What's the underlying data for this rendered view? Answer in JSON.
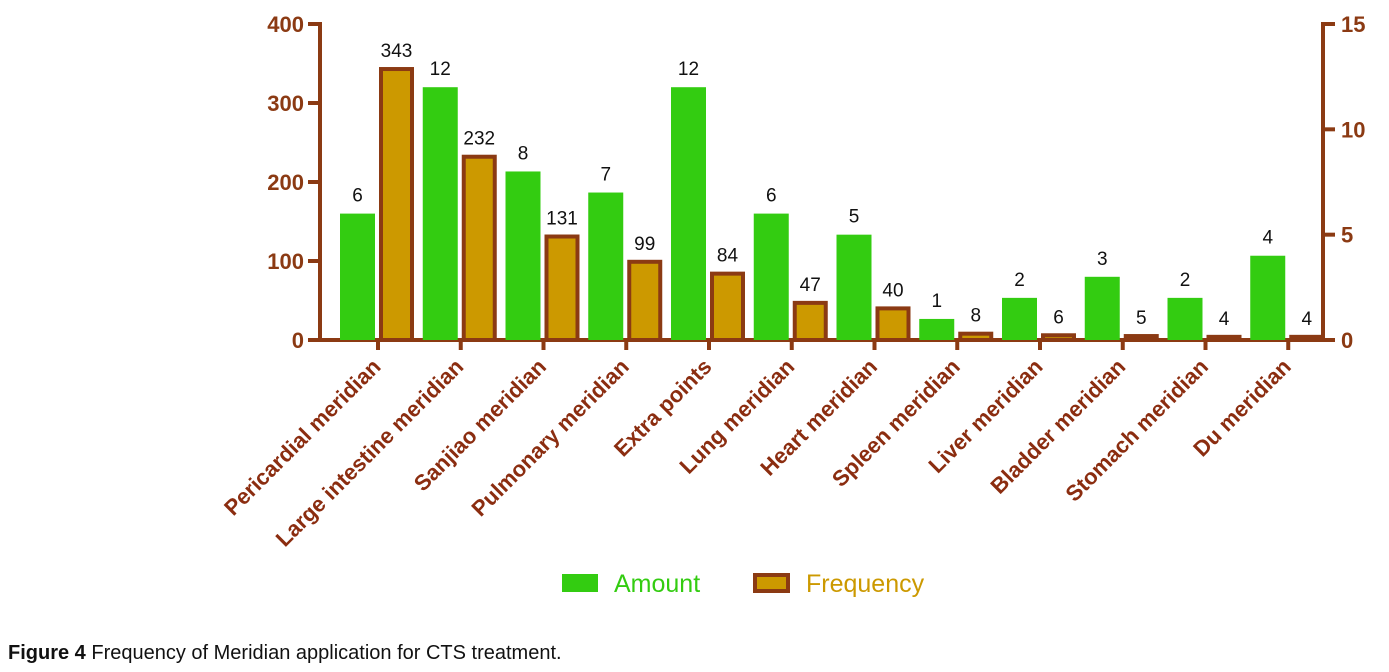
{
  "chart_data": {
    "type": "bar",
    "categories": [
      "Pericardial meridian",
      "Large intestine meridian",
      "Sanjiao meridian",
      "Pulmonary meridian",
      "Extra points",
      "Lung meridian",
      "Heart meridian",
      "Spleen meridian",
      "Liver meridian",
      "Bladder meridian",
      "Stomach meridian",
      "Du meridian"
    ],
    "series": [
      {
        "name": "Amount",
        "axis": "right",
        "color": "#33cc11",
        "values": [
          6,
          12,
          8,
          7,
          12,
          6,
          5,
          1,
          2,
          3,
          2,
          4
        ]
      },
      {
        "name": "Frequency",
        "axis": "left",
        "color": "#cc9900",
        "edge_color": "#8b3a13",
        "values": [
          343,
          232,
          131,
          99,
          84,
          47,
          40,
          8,
          6,
          5,
          4,
          4
        ]
      }
    ],
    "left_axis": {
      "ticks": [
        "0",
        "100",
        "200",
        "300",
        "400"
      ],
      "ylim": [
        0,
        400
      ]
    },
    "right_axis": {
      "ticks": [
        "0",
        "5",
        "10",
        "15"
      ],
      "ylim": [
        0,
        15
      ]
    },
    "legend_position": "bottom-center"
  },
  "caption": {
    "label": "Figure 4",
    "text": " Frequency of Meridian application for CTS treatment."
  }
}
